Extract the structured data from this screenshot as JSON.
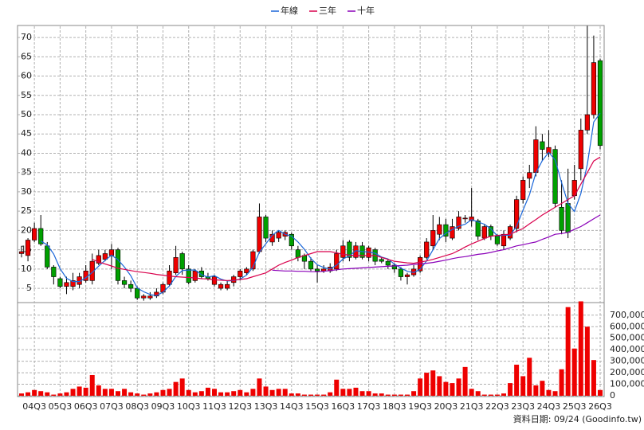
{
  "chart_data": [
    {
      "type": "candlestick",
      "categories": [
        null,
        null,
        "04Q3",
        null,
        null,
        null,
        "05Q3",
        null,
        null,
        null,
        "06Q3",
        null,
        null,
        null,
        "07Q3",
        null,
        null,
        null,
        "08Q3",
        null,
        null,
        null,
        "09Q3",
        null,
        null,
        null,
        "10Q3",
        null,
        null,
        null,
        "11Q3",
        null,
        null,
        null,
        "12Q3",
        null,
        null,
        null,
        "13Q3",
        null,
        null,
        null,
        "14Q3",
        null,
        null,
        null,
        "15Q3",
        null,
        null,
        null,
        "16Q3",
        null,
        null,
        null,
        "17Q3",
        null,
        null,
        null,
        "18Q3",
        null,
        null,
        null,
        "19Q3",
        null,
        null,
        null,
        "20Q3",
        null,
        null,
        null,
        "21Q3",
        null,
        null,
        null,
        "22Q3",
        null,
        null,
        null,
        "23Q3",
        null,
        null,
        null,
        "24Q3",
        null,
        null,
        null,
        "25Q3",
        null,
        null,
        null,
        "26Q3"
      ],
      "open": [
        14,
        13.5,
        17.5,
        20.5,
        16,
        10.5,
        7.5,
        5.5,
        5.5,
        6,
        7,
        7,
        11.5,
        12.5,
        13.5,
        15,
        7,
        6,
        5,
        2.5,
        2.5,
        3,
        4,
        6,
        9,
        14,
        10,
        7,
        9.5,
        8,
        6,
        5,
        5,
        6.5,
        8,
        9,
        10,
        14.5,
        23.5,
        17,
        18,
        18.5,
        19,
        15,
        13.5,
        12,
        10,
        9.5,
        9.5,
        10,
        13,
        17,
        13,
        16,
        13,
        15,
        12.5,
        12,
        11,
        10,
        8,
        8.5,
        9.5,
        13,
        16,
        19,
        21.5,
        18,
        20.5,
        23,
        22.5,
        22.5,
        18,
        21,
        18.5,
        16,
        18,
        20.5,
        28,
        33.5,
        35,
        43,
        40,
        41,
        26,
        27,
        29,
        36,
        46,
        50,
        64
      ],
      "high": [
        16,
        18,
        22,
        24,
        17,
        11,
        8,
        8,
        9,
        9,
        11,
        14,
        15,
        15,
        16.5,
        15.5,
        8,
        7,
        5.5,
        3.5,
        4,
        5,
        6.5,
        11,
        16,
        14.5,
        11,
        10,
        10.5,
        9,
        8.5,
        6.5,
        7,
        8.5,
        10,
        10.5,
        15,
        27,
        24,
        20,
        20,
        20,
        19.5,
        16,
        14,
        13,
        11,
        11,
        11.5,
        15,
        17.5,
        17.5,
        17,
        17,
        16,
        15.5,
        13,
        12.5,
        11.5,
        10.5,
        9,
        11,
        13.5,
        18,
        24,
        23.5,
        23,
        23,
        25,
        24,
        31,
        23,
        21.5,
        21.5,
        19,
        20,
        21.5,
        29,
        34,
        37,
        47,
        45,
        46,
        42,
        33,
        36,
        37,
        49,
        73,
        70.5,
        64.5
      ],
      "low": [
        13,
        12,
        17,
        16,
        10,
        6,
        5,
        3.5,
        4.5,
        5,
        6.5,
        6,
        11,
        12,
        10,
        6,
        5,
        4,
        2,
        1.8,
        2,
        2.5,
        3.5,
        5.5,
        8.5,
        8.5,
        6,
        6.5,
        7.5,
        7,
        5.5,
        4.5,
        4.5,
        5.5,
        7,
        8.5,
        9.5,
        14,
        17,
        16,
        17,
        17.5,
        15,
        12,
        10,
        9.5,
        6.5,
        9,
        9,
        9.5,
        12,
        12,
        12.5,
        12.5,
        12,
        11,
        11.5,
        10,
        9,
        7,
        6,
        8,
        9,
        12.5,
        15,
        17.5,
        17,
        17.5,
        20,
        22,
        21,
        17.5,
        17.5,
        17.5,
        16,
        15,
        17.5,
        19.5,
        27,
        31,
        34,
        38,
        39,
        26,
        19,
        18,
        28,
        33,
        45,
        49,
        41
      ],
      "close": [
        14.5,
        17.5,
        20.5,
        16.5,
        10.5,
        8,
        5.5,
        6.5,
        7,
        8,
        9.5,
        12,
        13.5,
        14,
        15,
        7,
        6,
        5,
        2.5,
        3,
        3,
        4,
        6,
        9.5,
        13,
        10,
        6.5,
        9.5,
        8,
        7.5,
        8,
        6,
        6,
        8,
        9.5,
        10,
        14.5,
        23.5,
        18,
        19,
        19.5,
        19.5,
        16,
        13,
        12,
        10,
        9.5,
        10,
        10.5,
        14,
        16,
        13,
        16,
        13,
        15.5,
        12,
        12,
        11,
        10,
        8,
        8.5,
        10,
        13,
        17,
        20,
        21.5,
        18.5,
        21,
        23.5,
        23.2,
        23.5,
        18.5,
        21,
        18.5,
        16.5,
        19,
        21,
        28,
        33,
        35,
        43.5,
        41,
        41.5,
        27,
        20,
        19.5,
        33,
        46,
        50,
        63.5,
        42
      ],
      "up_color": "#ee0000",
      "down_color": "#00a000",
      "series": [
        {
          "name": "年線",
          "color": "#1a66d9",
          "values": [
            null,
            null,
            null,
            17.25,
            16.25,
            13.9,
            10.1,
            7.6,
            6.75,
            6.75,
            7.75,
            9.1,
            10.75,
            12.25,
            13.6,
            12.4,
            10.5,
            8.25,
            5.1,
            4.1,
            3.4,
            3.1,
            4,
            5.6,
            8.1,
            9.6,
            9.75,
            9.75,
            8.5,
            7.9,
            8.25,
            7.4,
            6.9,
            7,
            7.4,
            8.4,
            10.5,
            14.4,
            16.5,
            18.75,
            20,
            19,
            18.5,
            17,
            15.1,
            12.75,
            11.1,
            10.4,
            10,
            11,
            12.6,
            13.4,
            14.75,
            14.5,
            14.4,
            14.1,
            13.1,
            12.6,
            11.25,
            10.25,
            9.4,
            9.1,
            9.9,
            12.1,
            15,
            17.9,
            19.25,
            20.25,
            21.1,
            21.6,
            22.8,
            22.2,
            21.6,
            20.4,
            18.6,
            18.75,
            18.75,
            21.1,
            25.25,
            29.25,
            34.9,
            38.1,
            40.25,
            38.25,
            32.4,
            27,
            24.9,
            29.6,
            37.1,
            48.1,
            50.4
          ]
        },
        {
          "name": "三年",
          "color": "#d9004c",
          "values": [
            null,
            null,
            null,
            null,
            null,
            null,
            null,
            null,
            null,
            null,
            null,
            12.5,
            11.8,
            11.3,
            10.8,
            10.2,
            9.9,
            9.6,
            9.3,
            9.1,
            8.9,
            8.6,
            8.4,
            8.2,
            8,
            7.9,
            7.8,
            7.7,
            7.5,
            7.4,
            7.2,
            7.1,
            7,
            7.1,
            7.3,
            7.5,
            8,
            8.5,
            9,
            10,
            11,
            11.7,
            12.3,
            13,
            13.5,
            14,
            14.5,
            14.5,
            14.5,
            14.2,
            13.8,
            13.6,
            13.5,
            13.5,
            13.5,
            13.5,
            13,
            12.5,
            12,
            11.8,
            11.6,
            11.5,
            11.8,
            12.1,
            12.5,
            13,
            13.5,
            14,
            14.8,
            15.7,
            16.5,
            17.2,
            17.9,
            18.5,
            18.7,
            18.9,
            19,
            19.8,
            20.5,
            21.7,
            22.8,
            24,
            25,
            26,
            27,
            28,
            29,
            32,
            35,
            38,
            39
          ]
        },
        {
          "name": "十年",
          "color": "#8a00b8",
          "values": [
            null,
            null,
            null,
            null,
            null,
            null,
            null,
            null,
            null,
            null,
            null,
            null,
            null,
            null,
            null,
            null,
            null,
            null,
            null,
            null,
            null,
            null,
            null,
            null,
            null,
            null,
            null,
            null,
            null,
            null,
            null,
            null,
            null,
            null,
            null,
            null,
            null,
            null,
            null,
            9.7,
            9.6,
            9.5,
            9.5,
            9.4,
            9.4,
            9.3,
            9.3,
            9.4,
            9.6,
            9.8,
            10,
            10.1,
            10.2,
            10.3,
            10.4,
            10.5,
            10.6,
            10.7,
            10.8,
            10.9,
            11,
            11.2,
            11.3,
            11.5,
            11.7,
            12,
            12.3,
            12.7,
            13,
            13.2,
            13.5,
            13.8,
            14,
            14.3,
            14.7,
            15,
            15.5,
            16,
            16.3,
            16.7,
            17,
            17.7,
            18.3,
            19,
            19.2,
            19.5,
            20.3,
            21,
            22,
            23,
            24
          ]
        }
      ],
      "ylim": [
        1.3,
        72.7
      ],
      "yticks": [
        5,
        10,
        15,
        20,
        25,
        30,
        35,
        40,
        45,
        50,
        55,
        60,
        65,
        70
      ],
      "grid": true,
      "footnote": "資料日期: 09/24  (Goodinfo.tw)"
    },
    {
      "type": "bar",
      "values": [
        20000,
        30000,
        50000,
        40000,
        30000,
        10000,
        20000,
        30000,
        60000,
        80000,
        70000,
        180000,
        90000,
        60000,
        60000,
        40000,
        60000,
        30000,
        20000,
        10000,
        20000,
        30000,
        50000,
        60000,
        120000,
        150000,
        50000,
        30000,
        40000,
        70000,
        60000,
        30000,
        30000,
        40000,
        50000,
        30000,
        60000,
        150000,
        80000,
        50000,
        60000,
        60000,
        20000,
        20000,
        10000,
        10000,
        10000,
        10000,
        30000,
        140000,
        60000,
        60000,
        70000,
        40000,
        40000,
        20000,
        20000,
        10000,
        10000,
        10000,
        10000,
        40000,
        150000,
        200000,
        220000,
        170000,
        120000,
        110000,
        150000,
        250000,
        60000,
        40000,
        10000,
        10000,
        10000,
        20000,
        110000,
        270000,
        170000,
        330000,
        90000,
        130000,
        50000,
        40000,
        230000,
        770000,
        410000,
        820000,
        600000,
        310000,
        50000
      ],
      "color": "#ee0000",
      "ylim": [
        0,
        830000
      ],
      "yticks": [
        0,
        {
          "value": 100000,
          "label": "100,000"
        },
        {
          "value": 200000,
          "label": "200,000"
        },
        {
          "value": 300000,
          "label": "300,000"
        },
        {
          "value": 400000,
          "label": "400,000"
        },
        {
          "value": 500000,
          "label": "500,000"
        },
        {
          "value": 600000,
          "label": "600,000"
        },
        {
          "value": 700000,
          "label": "700,000"
        }
      ],
      "grid": true
    }
  ]
}
